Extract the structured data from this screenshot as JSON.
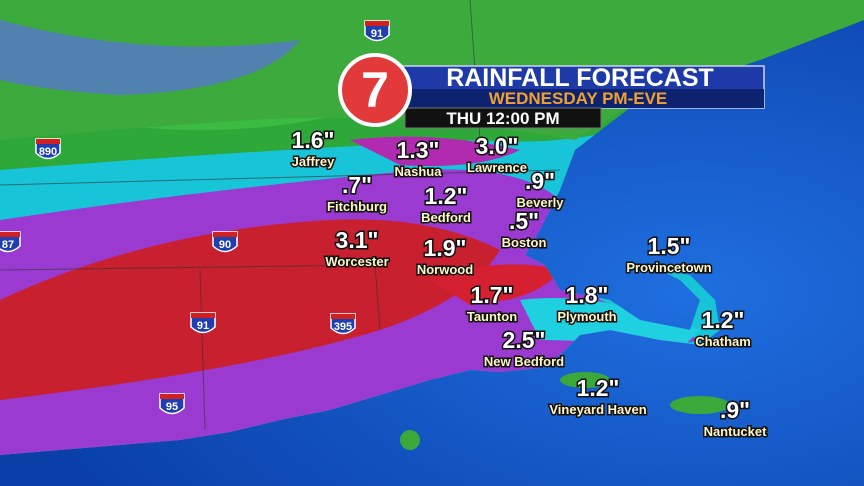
{
  "header": {
    "logo": "7",
    "title": "RAINFALL FORECAST",
    "subtitle": "WEDNESDAY PM-EVE",
    "time": "THU 12:00 PM"
  },
  "locations": [
    {
      "amount": "1.6\"",
      "name": "Jaffrey"
    },
    {
      "amount": "1.3\"",
      "name": "Nashua"
    },
    {
      "amount": "3.0\"",
      "name": "Lawrence"
    },
    {
      "amount": ".7\"",
      "name": "Fitchburg"
    },
    {
      "amount": "1.2\"",
      "name": "Bedford"
    },
    {
      "amount": ".9\"",
      "name": "Beverly"
    },
    {
      "amount": ".5\"",
      "name": "Boston"
    },
    {
      "amount": "3.1\"",
      "name": "Worcester"
    },
    {
      "amount": "1.9\"",
      "name": "Norwood"
    },
    {
      "amount": "1.5\"",
      "name": "Provincetown"
    },
    {
      "amount": "1.7\"",
      "name": "Taunton"
    },
    {
      "amount": "1.8\"",
      "name": "Plymouth"
    },
    {
      "amount": "1.2\"",
      "name": "Chatham"
    },
    {
      "amount": "2.5\"",
      "name": "New Bedford"
    },
    {
      "amount": "1.2\"",
      "name": "Vineyard Haven"
    },
    {
      "amount": ".9\"",
      "name": "Nantucket"
    }
  ],
  "highways": [
    "91",
    "890",
    "90",
    "91",
    "395",
    "95",
    "87"
  ]
}
